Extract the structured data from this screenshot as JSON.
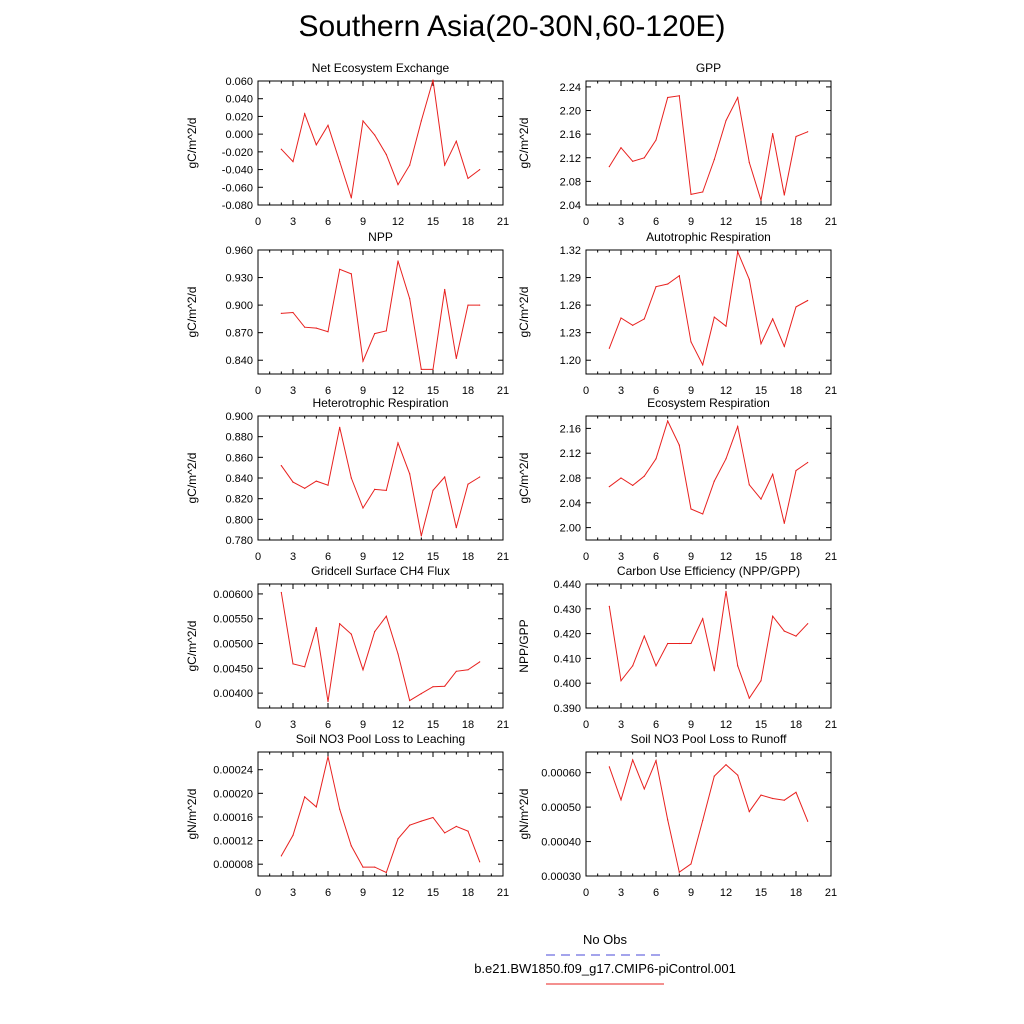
{
  "title": "Southern Asia(20-30N,60-120E)",
  "legend": [
    {
      "label": "No Obs",
      "color": "#4a4ad8",
      "dash": true
    },
    {
      "label": "b.e21.BW1850.f09_g17.CMIP6-piControl.001",
      "color": "#e8211f",
      "dash": false
    }
  ],
  "chart_data": [
    {
      "type": "line",
      "title": "Net Ecosystem Exchange",
      "ylabel": "gC/m^2/d",
      "xlim": [
        0,
        21
      ],
      "xticks": [
        0,
        3,
        6,
        9,
        12,
        15,
        18,
        21
      ],
      "ylim": [
        -0.08,
        0.06
      ],
      "yticks": [
        "0.060",
        "0.040",
        "0.020",
        "0.000",
        "-0.020",
        "-0.040",
        "-0.060",
        "-0.080"
      ],
      "series": [
        {
          "color": "#e8211f",
          "x": [
            2,
            3,
            4,
            5,
            6,
            7,
            8,
            9,
            10,
            11,
            12,
            13,
            14,
            15,
            16,
            17,
            18,
            19
          ],
          "values": [
            -0.017,
            -0.031,
            0.023,
            -0.012,
            0.01,
            -0.031,
            -0.072,
            0.015,
            -0.001,
            -0.023,
            -0.057,
            -0.035,
            0.015,
            0.061,
            -0.035,
            -0.008,
            -0.05,
            -0.04
          ]
        }
      ]
    },
    {
      "type": "line",
      "title": "GPP",
      "ylabel": "gC/m^2/d",
      "xlim": [
        0,
        21
      ],
      "xticks": [
        0,
        3,
        6,
        9,
        12,
        15,
        18,
        21
      ],
      "ylim": [
        2.04,
        2.25
      ],
      "yticks": [
        "2.24",
        "2.20",
        "2.16",
        "2.12",
        "2.08",
        "2.04"
      ],
      "series": [
        {
          "color": "#e8211f",
          "x": [
            2,
            3,
            4,
            5,
            6,
            7,
            8,
            9,
            10,
            11,
            12,
            13,
            14,
            15,
            16,
            17,
            18,
            19
          ],
          "values": [
            2.105,
            2.137,
            2.114,
            2.12,
            2.15,
            2.222,
            2.225,
            2.058,
            2.062,
            2.117,
            2.183,
            2.222,
            2.112,
            2.048,
            2.161,
            2.057,
            2.156,
            2.164
          ]
        }
      ]
    },
    {
      "type": "line",
      "title": "NPP",
      "ylabel": "gC/m^2/d",
      "xlim": [
        0,
        21
      ],
      "xticks": [
        0,
        3,
        6,
        9,
        12,
        15,
        18,
        21
      ],
      "ylim": [
        0.825,
        0.96
      ],
      "yticks": [
        "0.960",
        "0.930",
        "0.900",
        "0.870",
        "0.840"
      ],
      "series": [
        {
          "color": "#e8211f",
          "x": [
            2,
            3,
            4,
            5,
            6,
            7,
            8,
            9,
            10,
            11,
            12,
            13,
            14,
            15,
            16,
            17,
            18,
            19
          ],
          "values": [
            0.891,
            0.892,
            0.876,
            0.875,
            0.871,
            0.939,
            0.934,
            0.839,
            0.869,
            0.872,
            0.948,
            0.907,
            0.83,
            0.83,
            0.917,
            0.842,
            0.9,
            0.9
          ]
        }
      ]
    },
    {
      "type": "line",
      "title": "Autotrophic Respiration",
      "ylabel": "gC/m^2/d",
      "xlim": [
        0,
        21
      ],
      "xticks": [
        0,
        3,
        6,
        9,
        12,
        15,
        18,
        21
      ],
      "ylim": [
        1.185,
        1.32
      ],
      "yticks": [
        "1.32",
        "1.29",
        "1.26",
        "1.23",
        "1.20"
      ],
      "series": [
        {
          "color": "#e8211f",
          "x": [
            2,
            3,
            4,
            5,
            6,
            7,
            8,
            9,
            10,
            11,
            12,
            13,
            14,
            15,
            16,
            17,
            18,
            19
          ],
          "values": [
            1.213,
            1.246,
            1.238,
            1.245,
            1.28,
            1.283,
            1.292,
            1.22,
            1.195,
            1.247,
            1.237,
            1.318,
            1.288,
            1.218,
            1.245,
            1.215,
            1.258,
            1.265
          ]
        }
      ]
    },
    {
      "type": "line",
      "title": "Heterotrophic Respiration",
      "ylabel": "gC/m^2/d",
      "xlim": [
        0,
        21
      ],
      "xticks": [
        0,
        3,
        6,
        9,
        12,
        15,
        18,
        21
      ],
      "ylim": [
        0.78,
        0.9
      ],
      "yticks": [
        "0.900",
        "0.880",
        "0.860",
        "0.840",
        "0.820",
        "0.800",
        "0.780"
      ],
      "series": [
        {
          "color": "#e8211f",
          "x": [
            2,
            3,
            4,
            5,
            6,
            7,
            8,
            9,
            10,
            11,
            12,
            13,
            14,
            15,
            16,
            17,
            18,
            19
          ],
          "values": [
            0.852,
            0.836,
            0.83,
            0.837,
            0.833,
            0.889,
            0.84,
            0.811,
            0.829,
            0.828,
            0.874,
            0.844,
            0.784,
            0.828,
            0.841,
            0.792,
            0.834,
            0.841
          ]
        }
      ]
    },
    {
      "type": "line",
      "title": "Ecosystem Respiration",
      "ylabel": "gC/m^2/d",
      "xlim": [
        0,
        21
      ],
      "xticks": [
        0,
        3,
        6,
        9,
        12,
        15,
        18,
        21
      ],
      "ylim": [
        1.98,
        2.18
      ],
      "yticks": [
        "2.16",
        "2.12",
        "2.08",
        "2.04",
        "2.00"
      ],
      "series": [
        {
          "color": "#e8211f",
          "x": [
            2,
            3,
            4,
            5,
            6,
            7,
            8,
            9,
            10,
            11,
            12,
            13,
            14,
            15,
            16,
            17,
            18,
            19
          ],
          "values": [
            2.066,
            2.08,
            2.068,
            2.083,
            2.111,
            2.172,
            2.133,
            2.03,
            2.022,
            2.075,
            2.111,
            2.163,
            2.069,
            2.046,
            2.086,
            2.007,
            2.092,
            2.105
          ]
        }
      ]
    },
    {
      "type": "line",
      "title": "Gridcell Surface CH4 Flux",
      "ylabel": "gC/m^2/d",
      "xlim": [
        0,
        21
      ],
      "xticks": [
        0,
        3,
        6,
        9,
        12,
        15,
        18,
        21
      ],
      "ylim": [
        0.0037,
        0.0062
      ],
      "yticks": [
        "0.00600",
        "0.00550",
        "0.00500",
        "0.00450",
        "0.00400"
      ],
      "series": [
        {
          "color": "#e8211f",
          "x": [
            2,
            3,
            4,
            5,
            6,
            7,
            8,
            9,
            10,
            11,
            12,
            13,
            14,
            15,
            16,
            17,
            18,
            19
          ],
          "values": [
            0.00603,
            0.00459,
            0.00453,
            0.00532,
            0.00383,
            0.0054,
            0.00519,
            0.00447,
            0.00524,
            0.00555,
            0.00479,
            0.00385,
            0.00399,
            0.00413,
            0.00414,
            0.00444,
            0.00447,
            0.00463
          ]
        }
      ]
    },
    {
      "type": "line",
      "title": "Carbon Use Efficiency (NPP/GPP)",
      "ylabel": "NPP/GPP",
      "xlim": [
        0,
        21
      ],
      "xticks": [
        0,
        3,
        6,
        9,
        12,
        15,
        18,
        21
      ],
      "ylim": [
        0.39,
        0.44
      ],
      "yticks": [
        "0.440",
        "0.430",
        "0.420",
        "0.410",
        "0.400",
        "0.390"
      ],
      "series": [
        {
          "color": "#e8211f",
          "x": [
            2,
            3,
            4,
            5,
            6,
            7,
            8,
            9,
            10,
            11,
            12,
            13,
            14,
            15,
            16,
            17,
            18,
            19
          ],
          "values": [
            0.431,
            0.401,
            0.407,
            0.419,
            0.407,
            0.416,
            0.416,
            0.416,
            0.426,
            0.405,
            0.437,
            0.407,
            0.394,
            0.401,
            0.427,
            0.421,
            0.419,
            0.424
          ]
        }
      ]
    },
    {
      "type": "line",
      "title": "Soil NO3 Pool Loss to Leaching",
      "ylabel": "gN/m^2/d",
      "xlim": [
        0,
        21
      ],
      "xticks": [
        0,
        3,
        6,
        9,
        12,
        15,
        18,
        21
      ],
      "ylim": [
        6e-05,
        0.00027
      ],
      "yticks": [
        "0.00024",
        "0.00020",
        "0.00016",
        "0.00012",
        "0.00008"
      ],
      "series": [
        {
          "color": "#e8211f",
          "x": [
            2,
            3,
            4,
            5,
            6,
            7,
            8,
            9,
            10,
            11,
            12,
            13,
            14,
            15,
            16,
            17,
            18,
            19
          ],
          "values": [
            9.4e-05,
            0.000129,
            0.000194,
            0.000177,
            0.000262,
            0.000173,
            0.000111,
            7.5e-05,
            7.5e-05,
            6.6e-05,
            0.000123,
            0.000146,
            0.000153,
            0.000159,
            0.000133,
            0.000144,
            0.000136,
            8.4e-05
          ]
        }
      ]
    },
    {
      "type": "line",
      "title": "Soil NO3 Pool Loss to Runoff",
      "ylabel": "gN/m^2/d",
      "xlim": [
        0,
        21
      ],
      "xticks": [
        0,
        3,
        6,
        9,
        12,
        15,
        18,
        21
      ],
      "ylim": [
        0.0003,
        0.00066
      ],
      "yticks": [
        "0.00060",
        "0.00050",
        "0.00040",
        "0.00030"
      ],
      "series": [
        {
          "color": "#e8211f",
          "x": [
            2,
            3,
            4,
            5,
            6,
            7,
            8,
            9,
            10,
            11,
            12,
            13,
            14,
            15,
            16,
            17,
            18,
            19
          ],
          "values": [
            0.000617,
            0.000521,
            0.000637,
            0.000553,
            0.000635,
            0.000463,
            0.000311,
            0.000335,
            0.000461,
            0.00059,
            0.000623,
            0.000593,
            0.000487,
            0.000535,
            0.000525,
            0.00052,
            0.000543,
            0.000459
          ]
        }
      ]
    }
  ]
}
